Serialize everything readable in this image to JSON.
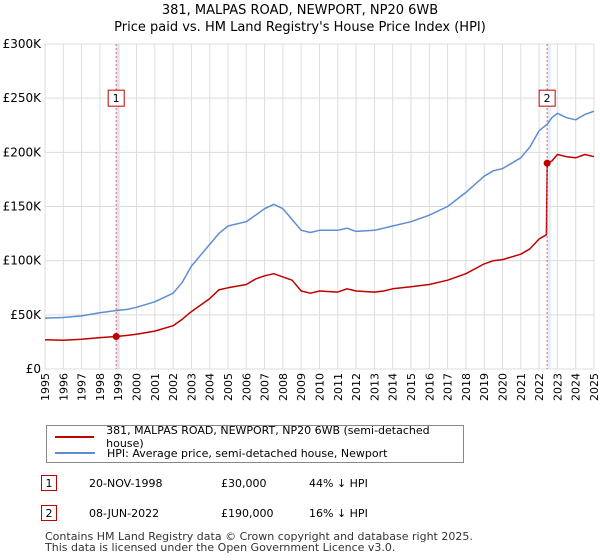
{
  "title": "381, MALPAS ROAD, NEWPORT, NP20 6WB",
  "subtitle": "Price paid vs. HM Land Registry's House Price Index (HPI)",
  "colors": {
    "price": "#c00000",
    "hpi": "#5b8fd1",
    "grid": "#dddddd",
    "band": "#e8eef8"
  },
  "chart_data": {
    "type": "line",
    "xlim": [
      1995,
      2025
    ],
    "ylim": [
      0,
      300000
    ],
    "x_ticks": [
      1995,
      1996,
      1997,
      1998,
      1999,
      2000,
      2001,
      2002,
      2003,
      2004,
      2005,
      2006,
      2007,
      2008,
      2009,
      2010,
      2011,
      2012,
      2013,
      2014,
      2015,
      2016,
      2017,
      2018,
      2019,
      2020,
      2021,
      2022,
      2023,
      2024,
      2025
    ],
    "y_ticks": [
      0,
      50000,
      100000,
      150000,
      200000,
      250000,
      300000
    ],
    "y_tick_labels": [
      "£0",
      "£50K",
      "£100K",
      "£150K",
      "£200K",
      "£250K",
      "£300K"
    ],
    "series": [
      {
        "name": "381, MALPAS ROAD, NEWPORT, NP20 6WB (semi-detached house)",
        "color": "#c00000",
        "points": [
          [
            1995.0,
            27000
          ],
          [
            1996.0,
            26500
          ],
          [
            1997.0,
            27500
          ],
          [
            1998.0,
            29000
          ],
          [
            1998.89,
            30000
          ],
          [
            1999.5,
            31000
          ],
          [
            2000.0,
            32000
          ],
          [
            2001.0,
            35000
          ],
          [
            2002.0,
            40000
          ],
          [
            2002.5,
            46000
          ],
          [
            2003.0,
            53000
          ],
          [
            2004.0,
            65000
          ],
          [
            2004.5,
            73000
          ],
          [
            2005.0,
            75000
          ],
          [
            2006.0,
            78000
          ],
          [
            2006.5,
            83000
          ],
          [
            2007.0,
            86000
          ],
          [
            2007.5,
            88000
          ],
          [
            2008.0,
            85000
          ],
          [
            2008.5,
            82000
          ],
          [
            2009.0,
            72000
          ],
          [
            2009.5,
            70000
          ],
          [
            2010.0,
            72000
          ],
          [
            2011.0,
            71000
          ],
          [
            2011.5,
            74000
          ],
          [
            2012.0,
            72000
          ],
          [
            2013.0,
            71000
          ],
          [
            2013.5,
            72000
          ],
          [
            2014.0,
            74000
          ],
          [
            2015.0,
            76000
          ],
          [
            2016.0,
            78000
          ],
          [
            2017.0,
            82000
          ],
          [
            2018.0,
            88000
          ],
          [
            2019.0,
            97000
          ],
          [
            2019.5,
            100000
          ],
          [
            2020.0,
            101000
          ],
          [
            2021.0,
            106000
          ],
          [
            2021.5,
            111000
          ],
          [
            2022.0,
            120000
          ],
          [
            2022.4,
            124000
          ],
          [
            2022.44,
            190000
          ],
          [
            2022.7,
            192000
          ],
          [
            2023.0,
            198000
          ],
          [
            2023.5,
            196000
          ],
          [
            2024.0,
            195000
          ],
          [
            2024.5,
            198000
          ],
          [
            2025.0,
            196000
          ]
        ]
      },
      {
        "name": "HPI: Average price, semi-detached house, Newport",
        "color": "#5b8fd1",
        "points": [
          [
            1995.0,
            47000
          ],
          [
            1996.0,
            47500
          ],
          [
            1997.0,
            49000
          ],
          [
            1998.0,
            52000
          ],
          [
            1998.89,
            54000
          ],
          [
            1999.5,
            55000
          ],
          [
            2000.0,
            57000
          ],
          [
            2001.0,
            62000
          ],
          [
            2002.0,
            70000
          ],
          [
            2002.5,
            80000
          ],
          [
            2003.0,
            95000
          ],
          [
            2004.0,
            115000
          ],
          [
            2004.5,
            125000
          ],
          [
            2005.0,
            132000
          ],
          [
            2006.0,
            136000
          ],
          [
            2006.5,
            142000
          ],
          [
            2007.0,
            148000
          ],
          [
            2007.5,
            152000
          ],
          [
            2008.0,
            148000
          ],
          [
            2008.5,
            138000
          ],
          [
            2009.0,
            128000
          ],
          [
            2009.5,
            126000
          ],
          [
            2010.0,
            128000
          ],
          [
            2011.0,
            128000
          ],
          [
            2011.5,
            130000
          ],
          [
            2012.0,
            127000
          ],
          [
            2013.0,
            128000
          ],
          [
            2013.5,
            130000
          ],
          [
            2014.0,
            132000
          ],
          [
            2015.0,
            136000
          ],
          [
            2016.0,
            142000
          ],
          [
            2017.0,
            150000
          ],
          [
            2018.0,
            163000
          ],
          [
            2019.0,
            178000
          ],
          [
            2019.5,
            183000
          ],
          [
            2020.0,
            185000
          ],
          [
            2021.0,
            195000
          ],
          [
            2021.5,
            205000
          ],
          [
            2022.0,
            220000
          ],
          [
            2022.44,
            226000
          ],
          [
            2022.7,
            232000
          ],
          [
            2023.0,
            236000
          ],
          [
            2023.5,
            232000
          ],
          [
            2024.0,
            230000
          ],
          [
            2024.5,
            235000
          ],
          [
            2025.0,
            238000
          ]
        ]
      }
    ],
    "transactions": [
      {
        "label": "1",
        "x": 1998.89,
        "price": 30000,
        "date": "20-NOV-1998",
        "price_text": "£30,000",
        "hpi_text": "44% ↓ HPI"
      },
      {
        "label": "2",
        "x": 2022.44,
        "price": 190000,
        "date": "08-JUN-2022",
        "price_text": "£190,000",
        "hpi_text": "16% ↓ HPI"
      }
    ],
    "marker_label_y": 250000
  },
  "legend": {
    "price_label": "381, MALPAS ROAD, NEWPORT, NP20 6WB (semi-detached house)",
    "hpi_label": "HPI: Average price, semi-detached house, Newport"
  },
  "footer": {
    "line1": "Contains HM Land Registry data © Crown copyright and database right 2025.",
    "line2": "This data is licensed under the Open Government Licence v3.0."
  }
}
